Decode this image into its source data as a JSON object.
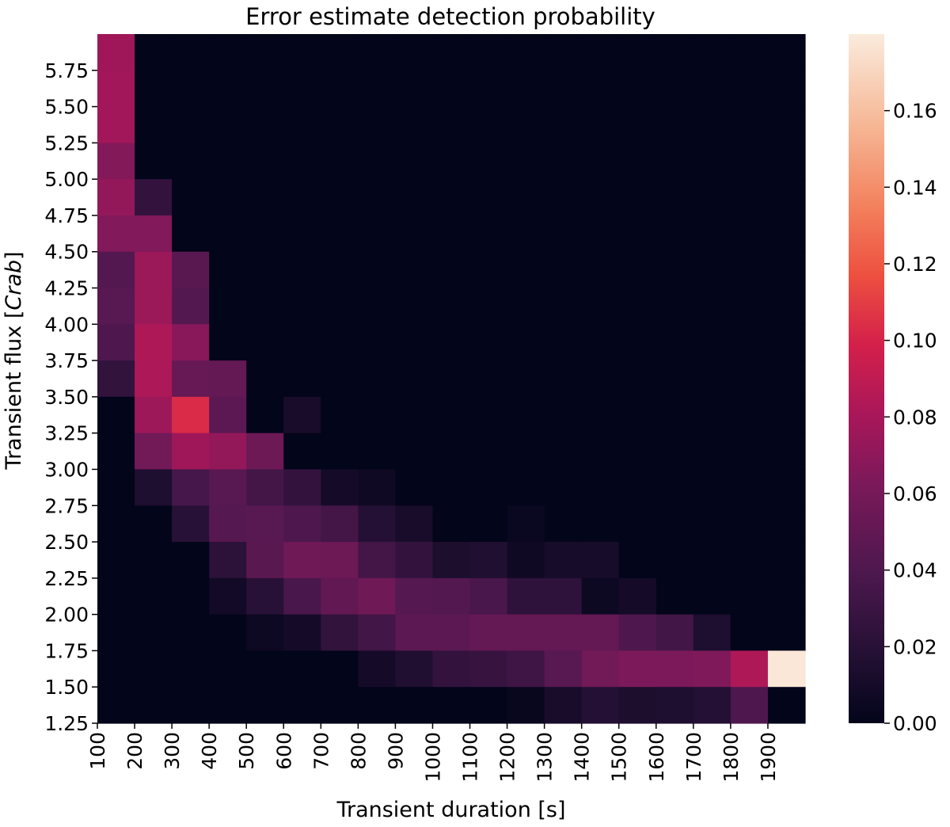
{
  "chart_data": {
    "type": "heatmap",
    "title": "Error estimate detection probability",
    "xlabel": "Transient duration [s]",
    "ylabel_main": "Transient flux [",
    "ylabel_italic": "Crab",
    "ylabel_end": "]",
    "x_tick_labels": [
      "100",
      "200",
      "300",
      "400",
      "500",
      "600",
      "700",
      "800",
      "900",
      "1000",
      "1100",
      "1200",
      "1300",
      "1400",
      "1500",
      "1600",
      "1700",
      "1800",
      "1900"
    ],
    "y_tick_labels": [
      "5.75",
      "5.50",
      "5.25",
      "5.00",
      "4.75",
      "4.50",
      "4.25",
      "4.00",
      "3.75",
      "3.50",
      "3.25",
      "3.00",
      "2.75",
      "2.50",
      "2.25",
      "2.00",
      "1.75",
      "1.50",
      "1.25"
    ],
    "colorbar": {
      "min": 0,
      "max": 0.18,
      "tick_labels": [
        "0.00",
        "0.02",
        "0.04",
        "0.06",
        "0.08",
        "0.10",
        "0.12",
        "0.14",
        "0.16"
      ],
      "tick_values": [
        0,
        0.02,
        0.04,
        0.06,
        0.08,
        0.1,
        0.12,
        0.14,
        0.16
      ]
    },
    "columns": 19,
    "rows": 19,
    "values": [
      [
        0.077,
        0,
        0,
        0,
        0,
        0,
        0,
        0,
        0,
        0,
        0,
        0,
        0,
        0,
        0,
        0,
        0,
        0,
        0
      ],
      [
        0.078,
        0,
        0,
        0,
        0,
        0,
        0,
        0,
        0,
        0,
        0,
        0,
        0,
        0,
        0,
        0,
        0,
        0,
        0
      ],
      [
        0.078,
        0,
        0,
        0,
        0,
        0,
        0,
        0,
        0,
        0,
        0,
        0,
        0,
        0,
        0,
        0,
        0,
        0,
        0
      ],
      [
        0.066,
        0,
        0,
        0,
        0,
        0,
        0,
        0,
        0,
        0,
        0,
        0,
        0,
        0,
        0,
        0,
        0,
        0,
        0
      ],
      [
        0.072,
        0.026,
        0,
        0,
        0,
        0,
        0,
        0,
        0,
        0,
        0,
        0,
        0,
        0,
        0,
        0,
        0,
        0,
        0
      ],
      [
        0.065,
        0.065,
        0,
        0,
        0,
        0,
        0,
        0,
        0,
        0,
        0,
        0,
        0,
        0,
        0,
        0,
        0,
        0,
        0
      ],
      [
        0.043,
        0.075,
        0.046,
        0,
        0,
        0,
        0,
        0,
        0,
        0,
        0,
        0,
        0,
        0,
        0,
        0,
        0,
        0,
        0
      ],
      [
        0.045,
        0.075,
        0.043,
        0,
        0,
        0,
        0,
        0,
        0,
        0,
        0,
        0,
        0,
        0,
        0,
        0,
        0,
        0,
        0
      ],
      [
        0.04,
        0.083,
        0.068,
        0,
        0,
        0,
        0,
        0,
        0,
        0,
        0,
        0,
        0,
        0,
        0,
        0,
        0,
        0,
        0
      ],
      [
        0.025,
        0.082,
        0.052,
        0.051,
        0,
        0,
        0,
        0,
        0,
        0,
        0,
        0,
        0,
        0,
        0,
        0,
        0,
        0,
        0
      ],
      [
        0,
        0.076,
        0.103,
        0.047,
        0,
        0.012,
        0,
        0,
        0,
        0,
        0,
        0,
        0,
        0,
        0,
        0,
        0,
        0,
        0
      ],
      [
        0,
        0.058,
        0.077,
        0.072,
        0.055,
        0,
        0,
        0,
        0,
        0,
        0,
        0,
        0,
        0,
        0,
        0,
        0,
        0,
        0
      ],
      [
        0,
        0.015,
        0.036,
        0.045,
        0.035,
        0.026,
        0.01,
        0.007,
        0,
        0,
        0,
        0,
        0,
        0,
        0,
        0,
        0,
        0,
        0
      ],
      [
        0,
        0,
        0.02,
        0.044,
        0.045,
        0.04,
        0.035,
        0.018,
        0.012,
        0,
        0,
        0.004,
        0,
        0,
        0,
        0,
        0,
        0,
        0
      ],
      [
        0,
        0,
        0,
        0.022,
        0.046,
        0.057,
        0.055,
        0.035,
        0.026,
        0.014,
        0.016,
        0.007,
        0.011,
        0.011,
        0,
        0,
        0,
        0,
        0
      ],
      [
        0,
        0,
        0,
        0.008,
        0.02,
        0.038,
        0.05,
        0.057,
        0.044,
        0.043,
        0.038,
        0.024,
        0.024,
        0.006,
        0.01,
        0,
        0,
        0,
        0
      ],
      [
        0,
        0,
        0,
        0,
        0.006,
        0.01,
        0.025,
        0.034,
        0.047,
        0.047,
        0.051,
        0.051,
        0.051,
        0.051,
        0.04,
        0.034,
        0.015,
        0,
        0
      ],
      [
        0,
        0,
        0,
        0,
        0,
        0,
        0,
        0.01,
        0.016,
        0.026,
        0.028,
        0.032,
        0.045,
        0.058,
        0.063,
        0.063,
        0.064,
        0.083,
        0.178
      ],
      [
        0,
        0,
        0,
        0,
        0,
        0,
        0,
        0,
        0,
        0,
        0,
        0.003,
        0.012,
        0.018,
        0.014,
        0.015,
        0.018,
        0.04,
        0
      ]
    ]
  }
}
